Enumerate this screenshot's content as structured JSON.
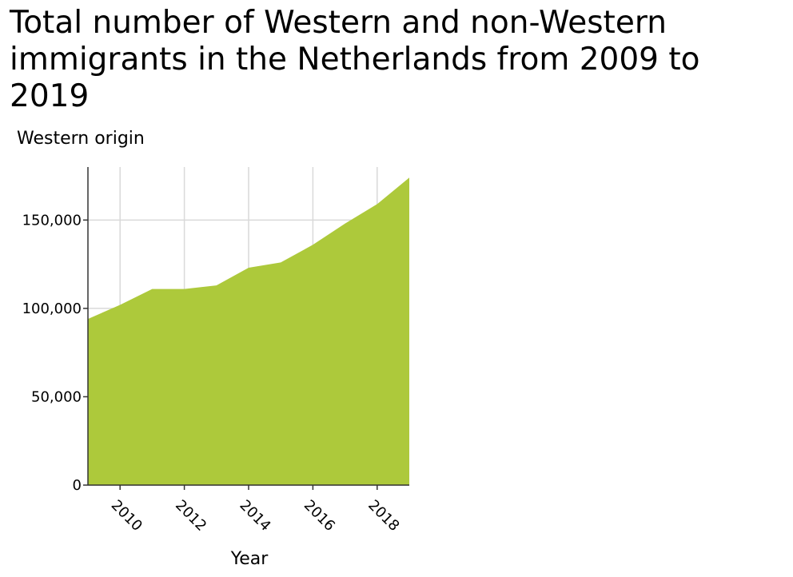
{
  "chart_data": {
    "type": "area",
    "title": "Total number of Western and non-Western immigrants in the Netherlands from 2009 to 2019",
    "ylabel": "Western origin",
    "xlabel": "Year",
    "x": [
      2009,
      2010,
      2011,
      2012,
      2013,
      2014,
      2015,
      2016,
      2017,
      2018,
      2019
    ],
    "series": [
      {
        "values": [
          94000,
          102000,
          111000,
          111000,
          113000,
          123000,
          126000,
          136000,
          148000,
          159000,
          174000
        ],
        "color": "#adc93b"
      }
    ],
    "xlim": [
      2009,
      2019
    ],
    "ylim": [
      0,
      180000
    ],
    "x_ticks": [
      2010,
      2012,
      2014,
      2016,
      2018
    ],
    "y_ticks": [
      0,
      50000,
      100000,
      150000
    ],
    "x_tick_labels": [
      "2010",
      "2012",
      "2014",
      "2016",
      "2018"
    ],
    "y_tick_labels": [
      "0",
      "50,000",
      "100,000",
      "150,000"
    ],
    "grid": true,
    "colors": {
      "fill": "#adc93b",
      "grid": "#d9d9d9",
      "axis": "#333333"
    }
  }
}
